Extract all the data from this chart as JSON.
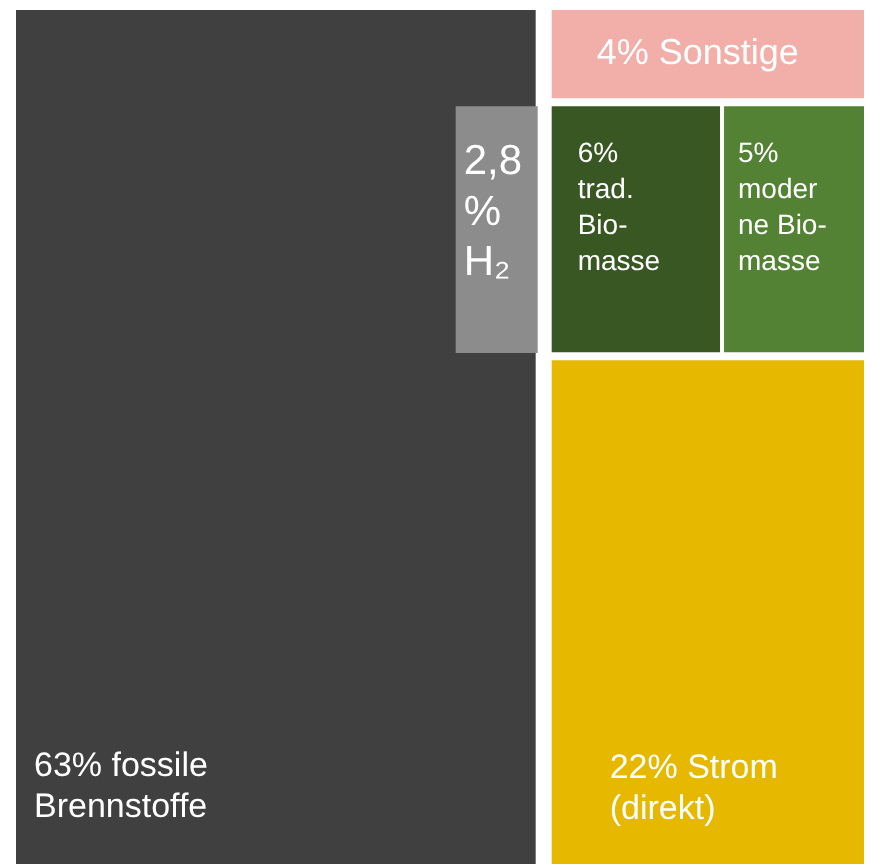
{
  "chart_data": {
    "type": "other",
    "categories": [
      "fossile\nBrennstoffe",
      "H₂",
      "Sonstige",
      "trad.\nBio-\nmasse",
      "moder\nne Bio-\nmasse",
      "Strom\n(direkt)"
    ],
    "values": [
      63,
      2.8,
      4,
      6,
      5,
      22
    ],
    "colors": [
      "#404040",
      "#8c8c8c",
      "#f2aea8",
      "#385723",
      "#548235",
      "#e6b800"
    ],
    "value_labels": [
      "63%",
      "2,8\n%",
      "4%",
      "6%",
      "5%",
      "22%"
    ]
  }
}
